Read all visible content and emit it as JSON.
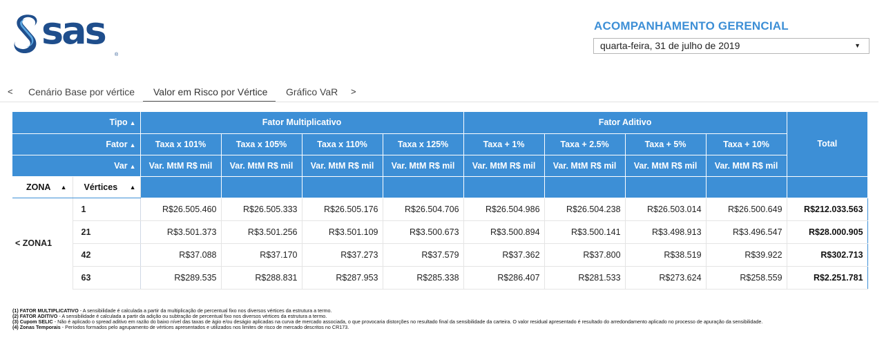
{
  "logo": {
    "text": "sas",
    "reg": "®"
  },
  "header": {
    "title": "ACOMPANHAMENTO GERENCIAL",
    "date_value": "quarta-feira, 31 de julho de 2019",
    "caret": "▼"
  },
  "tabs": {
    "prev_arrow": "<",
    "next_arrow": ">",
    "items": [
      {
        "label": "Cenário Base por vértice"
      },
      {
        "label": "Valor em Risco por Vértice"
      },
      {
        "label": "Gráfico VaR"
      }
    ]
  },
  "table": {
    "row_labels": {
      "tipo": "Tipo",
      "fator": "Fator",
      "var": "Var",
      "sort_icon": "▲"
    },
    "groups": {
      "multiplicativo": "Fator Multiplicativo",
      "aditivo": "Fator Aditivo",
      "total": "Total"
    },
    "factors": [
      "Taxa x 101%",
      "Taxa x 105%",
      "Taxa x 110%",
      "Taxa x 125%",
      "Taxa + 1%",
      "Taxa + 2.5%",
      "Taxa + 5%",
      "Taxa + 10%"
    ],
    "var_label": "Var. MtM R$ mil",
    "col_zona": "ZONA",
    "col_vertices": "Vértices",
    "zona_name": "< ZONA1",
    "rows": [
      {
        "vertice": "1",
        "values": [
          "R$26.505.460",
          "R$26.505.333",
          "R$26.505.176",
          "R$26.504.706",
          "R$26.504.986",
          "R$26.504.238",
          "R$26.503.014",
          "R$26.500.649"
        ],
        "total": "R$212.033.563"
      },
      {
        "vertice": "21",
        "values": [
          "R$3.501.373",
          "R$3.501.256",
          "R$3.501.109",
          "R$3.500.673",
          "R$3.500.894",
          "R$3.500.141",
          "R$3.498.913",
          "R$3.496.547"
        ],
        "total": "R$28.000.905"
      },
      {
        "vertice": "42",
        "values": [
          "R$37.088",
          "R$37.170",
          "R$37.273",
          "R$37.579",
          "R$37.362",
          "R$37.800",
          "R$38.519",
          "R$39.922"
        ],
        "total": "R$302.713"
      },
      {
        "vertice": "63",
        "values": [
          "R$289.535",
          "R$288.831",
          "R$287.953",
          "R$285.338",
          "R$286.407",
          "R$281.533",
          "R$273.624",
          "R$258.559"
        ],
        "total": "R$2.251.781"
      }
    ]
  },
  "footnotes": [
    {
      "bold": "(1) FATOR MULTIPLICATIVO",
      "text": " - A sensibilidade é calculada a partir da multiplicação de percentual fixo nos diversos vértices da estrutura a termo."
    },
    {
      "bold": "(2) FATOR ADITIVO",
      "text": " - A sensibilidade é calculada a partir da adição ou subtração de percentual fixo nos diversos vértices da estrutura a termo."
    },
    {
      "bold": "(3) Cupom SELIC",
      "text": " - Não é aplicado o spread aditivo em razão do baixo nível das taxas de ágio e/ou deságio aplicadas na curva de mercado associada, o que provocaria distorções no resultado final da sensibilidade da carteira. O valor residual apresentado é resultado do arredondamento aplicado no processo de apuração da sensibilidade."
    },
    {
      "bold": "(4) Zonas Temporais",
      "text": " - Períodos formados pelo agrupamento de vértices apresentados e utilizados nos limites de risco de mercado descritos no CR173."
    }
  ]
}
